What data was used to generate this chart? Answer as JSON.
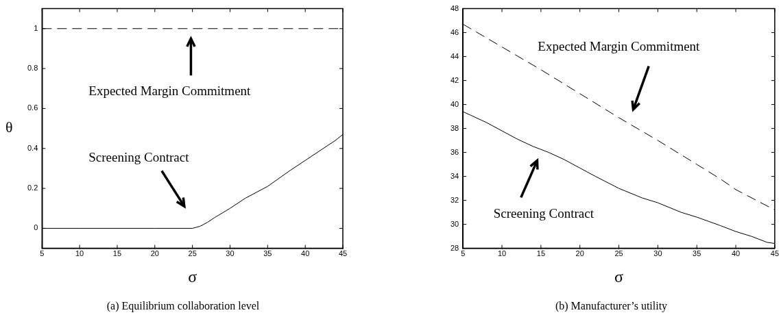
{
  "chart_data": [
    {
      "type": "line",
      "title": "(a) Equilibrium collaboration level",
      "xlabel": "σ",
      "ylabel": "θ",
      "xlim": [
        5,
        45
      ],
      "xticks": [
        5,
        10,
        15,
        20,
        25,
        30,
        35,
        40,
        45
      ],
      "ylim": [
        -0.1,
        1.1
      ],
      "yticks": [
        0,
        0.2,
        0.4,
        0.6,
        0.8,
        1
      ],
      "grid": false,
      "legend": false,
      "marker": "none",
      "series": [
        {
          "color": "#000000",
          "line_style": "dashed",
          "x": [
            5,
            45
          ],
          "values": [
            1,
            1
          ]
        },
        {
          "color": "#000000",
          "line_style": "solid",
          "x": [
            5,
            10,
            15,
            20,
            25,
            26,
            27,
            28,
            30,
            32,
            35,
            38,
            40,
            42,
            44,
            45
          ],
          "values": [
            0,
            0,
            0,
            0,
            0,
            0.01,
            0.03,
            0.055,
            0.1,
            0.15,
            0.21,
            0.29,
            0.34,
            0.39,
            0.44,
            0.47
          ]
        }
      ],
      "annotations": [
        "Expected Margin Commitment",
        "Screening Contract"
      ]
    },
    {
      "type": "line",
      "title": "(b) Manufacturer’s utility",
      "xlabel": "σ",
      "xlim": [
        5,
        45
      ],
      "xticks": [
        5,
        10,
        15,
        20,
        25,
        30,
        35,
        40,
        45
      ],
      "ylim": [
        28,
        48
      ],
      "yticks": [
        28,
        30,
        32,
        34,
        36,
        38,
        40,
        42,
        44,
        46,
        48
      ],
      "grid": false,
      "legend": false,
      "marker": "none",
      "series": [
        {
          "color": "#000000",
          "line_style": "dashed",
          "x": [
            5,
            10,
            15,
            18,
            20,
            25,
            30,
            35,
            38,
            40,
            45
          ],
          "values": [
            46.7,
            44.8,
            42.9,
            41.7,
            40.9,
            38.9,
            37.0,
            35.0,
            33.8,
            32.9,
            31.2
          ]
        },
        {
          "color": "#000000",
          "line_style": "solid",
          "x": [
            5,
            6,
            8,
            10,
            12,
            14,
            16,
            18,
            20,
            22,
            25,
            28,
            30,
            33,
            35,
            38,
            40,
            42,
            44,
            45
          ],
          "values": [
            39.4,
            39.1,
            38.5,
            37.8,
            37.1,
            36.5,
            36.0,
            35.4,
            34.7,
            34.0,
            33.0,
            32.2,
            31.8,
            31.0,
            30.6,
            29.9,
            29.4,
            29.0,
            28.5,
            28.4
          ]
        }
      ],
      "annotations": [
        "Expected Margin Commitment",
        "Screening Contract"
      ]
    }
  ]
}
